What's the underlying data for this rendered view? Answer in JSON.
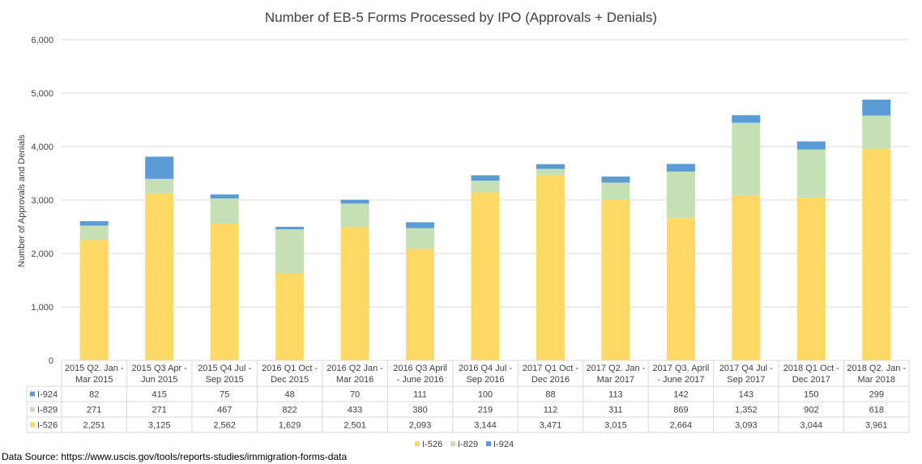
{
  "chart_data": {
    "type": "bar",
    "stacked": true,
    "title": "Number of EB-5 Forms Processed by IPO (Approvals + Denials)",
    "ylabel": "Number of Approvals and Denials",
    "xlabel": "",
    "ylim": [
      0,
      6000
    ],
    "yticks": [
      0,
      1000,
      2000,
      3000,
      4000,
      5000,
      6000
    ],
    "ytick_labels": [
      "0",
      "1,000",
      "2,000",
      "3,000",
      "4,000",
      "5,000",
      "6,000"
    ],
    "grid": true,
    "legend_position": "bottom",
    "categories": [
      [
        "2015 Q2. Jan -",
        "Mar 2015"
      ],
      [
        "2015 Q3 Apr -",
        "Jun 2015"
      ],
      [
        "2015 Q4 Jul -",
        "Sep 2015"
      ],
      [
        "2016 Q1 Oct -",
        "Dec 2015"
      ],
      [
        "2016 Q2 Jan -",
        "Mar 2016"
      ],
      [
        "2016 Q3 April",
        "- June 2016"
      ],
      [
        "2016 Q4 Jul -",
        "Sep 2016"
      ],
      [
        "2017 Q1 Oct -",
        "Dec 2016"
      ],
      [
        "2017 Q2. Jan -",
        "Mar 2017"
      ],
      [
        "2017 Q3. April",
        "- June 2017"
      ],
      [
        "2017 Q4 Jul -",
        "Sep 2017"
      ],
      [
        "2018 Q1 Oct -",
        "Dec 2017"
      ],
      [
        "2018 Q2. Jan -",
        "Mar 2018"
      ]
    ],
    "series": [
      {
        "name": "I-526",
        "color": "#FFD966",
        "values": [
          2251,
          3125,
          2562,
          1629,
          2501,
          2093,
          3144,
          3471,
          3015,
          2664,
          3093,
          3044,
          3961
        ],
        "labels": [
          "2,251",
          "3,125",
          "2,562",
          "1,629",
          "2,501",
          "2,093",
          "3,144",
          "3,471",
          "3,015",
          "2,664",
          "3,093",
          "3,044",
          "3,961"
        ]
      },
      {
        "name": "I-829",
        "color": "#C5E0B4",
        "values": [
          271,
          271,
          467,
          822,
          433,
          380,
          219,
          112,
          311,
          869,
          1352,
          902,
          618
        ],
        "labels": [
          "271",
          "271",
          "467",
          "822",
          "433",
          "380",
          "219",
          "112",
          "311",
          "869",
          "1,352",
          "902",
          "618"
        ]
      },
      {
        "name": "I-924",
        "color": "#5B9BD5",
        "values": [
          82,
          415,
          75,
          48,
          70,
          111,
          100,
          88,
          113,
          142,
          143,
          150,
          299
        ],
        "labels": [
          "82",
          "415",
          "75",
          "48",
          "70",
          "111",
          "100",
          "88",
          "113",
          "142",
          "143",
          "150",
          "299"
        ]
      }
    ],
    "table_row_order": [
      "I-924",
      "I-829",
      "I-526"
    ],
    "legend_order": [
      "I-526",
      "I-829",
      "I-924"
    ]
  },
  "footer": {
    "source": "Data Source: https://www.uscis.gov/tools/reports-studies/immigration-forms-data"
  }
}
